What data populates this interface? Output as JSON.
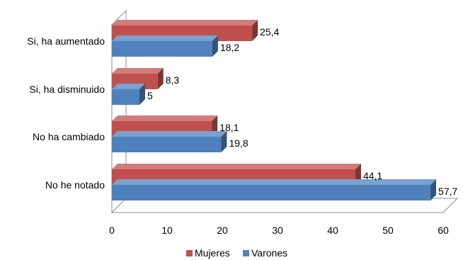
{
  "chart_data": {
    "type": "bar",
    "orientation": "horizontal",
    "style": "3d",
    "categories": [
      "Si, ha aumentado",
      "Si, ha disminuido",
      "No ha cambiado",
      "No he notado"
    ],
    "series": [
      {
        "name": "Mujeres",
        "values": [
          25.4,
          8.3,
          18.1,
          44.1
        ],
        "value_labels": [
          "25,4",
          "8,3",
          "18,1",
          "44,1"
        ],
        "color": "#c0504d"
      },
      {
        "name": "Varones",
        "values": [
          18.2,
          5,
          19.8,
          57.7
        ],
        "value_labels": [
          "18,2",
          "5",
          "19,8",
          "57,7"
        ],
        "color": "#4f81bd"
      }
    ],
    "x_ticks": [
      0,
      10,
      20,
      30,
      40,
      50,
      60
    ],
    "xlim": [
      0,
      60
    ],
    "title": "",
    "xlabel": "",
    "ylabel": "",
    "grid": false,
    "legend_position": "bottom"
  }
}
